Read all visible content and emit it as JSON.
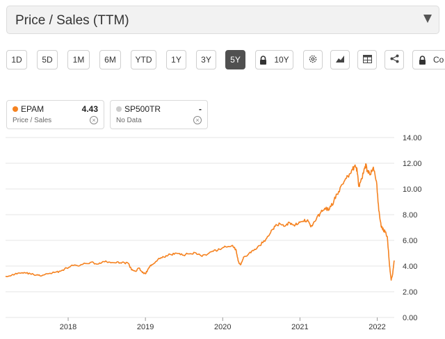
{
  "metric_select": {
    "label": "Price / Sales (TTM)"
  },
  "toolbar": {
    "ranges": [
      "1D",
      "5D",
      "1M",
      "6M",
      "YTD",
      "1Y",
      "3Y",
      "5Y",
      "10Y"
    ],
    "active_range": "5Y",
    "tool_icons": [
      "settings-icon",
      "chart-type-icon",
      "table-icon",
      "share-icon"
    ],
    "compare_label": "Co"
  },
  "legend": [
    {
      "name": "EPAM",
      "value": "4.43",
      "sub": "Price / Sales",
      "color": "#f58220"
    },
    {
      "name": "SP500TR",
      "value": "-",
      "sub": "No Data",
      "color": "#cccccc"
    }
  ],
  "chart_data": {
    "type": "line",
    "title": "Price / Sales (TTM)",
    "xlabel": "",
    "ylabel": "",
    "ylim": [
      0,
      14
    ],
    "yticks": [
      "14.00",
      "12.00",
      "10.00",
      "8.00",
      "6.00",
      "4.00",
      "2.00",
      "0.00"
    ],
    "xticks": [
      {
        "label": "2018",
        "year": 2018
      },
      {
        "label": "2019",
        "year": 2019
      },
      {
        "label": "2020",
        "year": 2020
      },
      {
        "label": "2021",
        "year": 2021
      },
      {
        "label": "2022",
        "year": 2022
      }
    ],
    "xrange": [
      2017.19,
      2022.22
    ],
    "series": [
      {
        "name": "EPAM",
        "color": "#f58220",
        "points": [
          [
            2017.19,
            3.2
          ],
          [
            2017.27,
            3.3
          ],
          [
            2017.35,
            3.45
          ],
          [
            2017.43,
            3.5
          ],
          [
            2017.51,
            3.4
          ],
          [
            2017.59,
            3.3
          ],
          [
            2017.66,
            3.25
          ],
          [
            2017.74,
            3.4
          ],
          [
            2017.82,
            3.5
          ],
          [
            2017.9,
            3.6
          ],
          [
            2017.98,
            3.85
          ],
          [
            2018.06,
            4.05
          ],
          [
            2018.14,
            4.0
          ],
          [
            2018.22,
            4.2
          ],
          [
            2018.3,
            4.3
          ],
          [
            2018.38,
            4.15
          ],
          [
            2018.46,
            4.35
          ],
          [
            2018.54,
            4.3
          ],
          [
            2018.62,
            4.25
          ],
          [
            2018.7,
            4.3
          ],
          [
            2018.78,
            4.2
          ],
          [
            2018.82,
            3.7
          ],
          [
            2018.87,
            3.6
          ],
          [
            2018.92,
            3.85
          ],
          [
            2018.96,
            3.5
          ],
          [
            2019.0,
            3.4
          ],
          [
            2019.04,
            3.8
          ],
          [
            2019.08,
            4.1
          ],
          [
            2019.16,
            4.5
          ],
          [
            2019.24,
            4.7
          ],
          [
            2019.32,
            4.9
          ],
          [
            2019.4,
            5.0
          ],
          [
            2019.48,
            4.85
          ],
          [
            2019.56,
            4.95
          ],
          [
            2019.64,
            5.05
          ],
          [
            2019.72,
            4.8
          ],
          [
            2019.8,
            4.9
          ],
          [
            2019.88,
            5.15
          ],
          [
            2019.96,
            5.3
          ],
          [
            2020.04,
            5.5
          ],
          [
            2020.12,
            5.6
          ],
          [
            2020.17,
            5.3
          ],
          [
            2020.2,
            4.4
          ],
          [
            2020.23,
            4.1
          ],
          [
            2020.27,
            4.7
          ],
          [
            2020.33,
            4.9
          ],
          [
            2020.4,
            5.2
          ],
          [
            2020.48,
            5.6
          ],
          [
            2020.56,
            6.1
          ],
          [
            2020.62,
            6.6
          ],
          [
            2020.68,
            7.1
          ],
          [
            2020.74,
            7.3
          ],
          [
            2020.8,
            7.1
          ],
          [
            2020.86,
            7.4
          ],
          [
            2020.92,
            7.2
          ],
          [
            2020.98,
            7.3
          ],
          [
            2021.04,
            7.5
          ],
          [
            2021.1,
            7.6
          ],
          [
            2021.14,
            7.05
          ],
          [
            2021.2,
            7.5
          ],
          [
            2021.26,
            8.1
          ],
          [
            2021.32,
            8.5
          ],
          [
            2021.38,
            8.4
          ],
          [
            2021.44,
            9.1
          ],
          [
            2021.5,
            9.8
          ],
          [
            2021.56,
            10.4
          ],
          [
            2021.62,
            11.0
          ],
          [
            2021.68,
            11.5
          ],
          [
            2021.72,
            11.7
          ],
          [
            2021.74,
            11.4
          ],
          [
            2021.76,
            10.2
          ],
          [
            2021.78,
            10.5
          ],
          [
            2021.82,
            11.2
          ],
          [
            2021.85,
            11.95
          ],
          [
            2021.87,
            11.4
          ],
          [
            2021.91,
            11.1
          ],
          [
            2021.95,
            11.7
          ],
          [
            2021.99,
            10.6
          ],
          [
            2022.02,
            8.3
          ],
          [
            2022.05,
            7.1
          ],
          [
            2022.08,
            6.8
          ],
          [
            2022.1,
            6.7
          ],
          [
            2022.13,
            6.3
          ],
          [
            2022.16,
            4.0
          ],
          [
            2022.18,
            2.9
          ],
          [
            2022.2,
            3.4
          ],
          [
            2022.22,
            4.43
          ]
        ]
      }
    ]
  }
}
